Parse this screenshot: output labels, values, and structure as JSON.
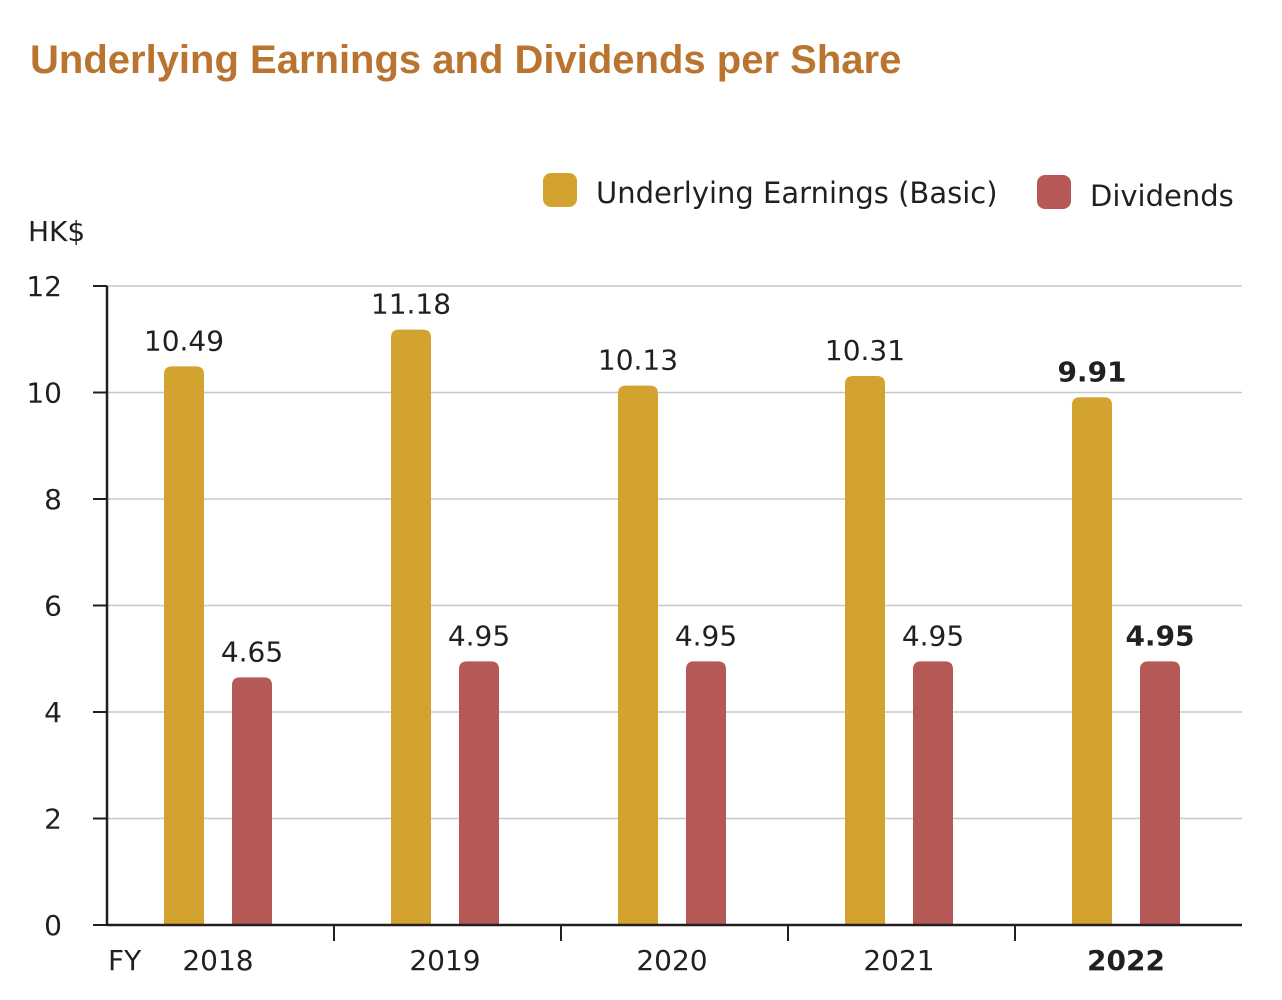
{
  "title": "Underlying Earnings and Dividends per Share",
  "colors": {
    "title": "#b9752f",
    "earnings": "#d2a42f",
    "dividends": "#b55957",
    "grid": "#c8c8c8",
    "axis": "#231f20"
  },
  "chart_data": {
    "type": "bar",
    "title": "Underlying Earnings and Dividends per Share",
    "ylabel": "HK$",
    "xlabel": "FY",
    "categories": [
      "2018",
      "2019",
      "2020",
      "2021",
      "2022"
    ],
    "highlight_category": "2022",
    "series": [
      {
        "name": "Underlying Earnings (Basic)",
        "values": [
          10.49,
          11.18,
          10.13,
          10.31,
          9.91
        ],
        "labels": [
          "10.49",
          "11.18",
          "10.13",
          "10.31",
          "9.91"
        ]
      },
      {
        "name": "Dividends",
        "values": [
          4.65,
          4.95,
          4.95,
          4.95,
          4.95
        ],
        "labels": [
          "4.65",
          "4.95",
          "4.95",
          "4.95",
          "4.95"
        ]
      }
    ],
    "ylim": [
      0,
      12
    ],
    "yticks": [
      "0",
      "2",
      "4",
      "6",
      "8",
      "10",
      "12"
    ],
    "grid": true,
    "legend_position": "top-right"
  }
}
